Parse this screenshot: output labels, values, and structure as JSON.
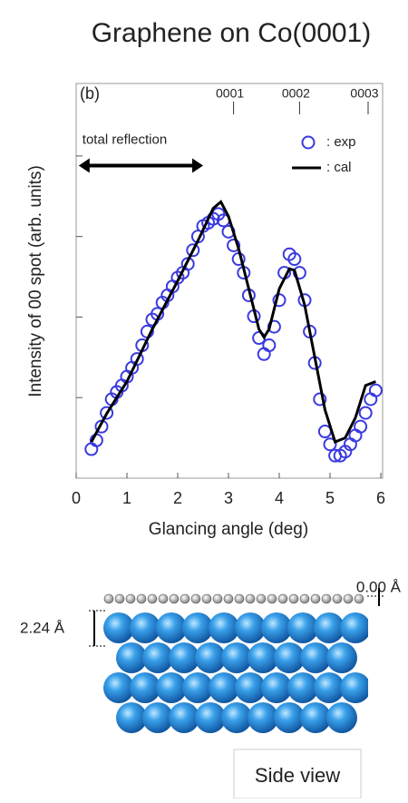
{
  "chart_data": {
    "type": "line",
    "title": "Graphene on Co(0001)",
    "panel_label": "(b)",
    "xlabel": "Glancing angle (deg)",
    "ylabel": "Intensity of 00 spot (arb. units)",
    "xlim": [
      0,
      6
    ],
    "xticks": [
      0,
      1,
      2,
      3,
      4,
      5,
      6
    ],
    "ylim": [
      0,
      4.9
    ],
    "yticks": [
      1,
      2,
      3,
      4
    ],
    "top_ticks": [
      {
        "value": 3.1,
        "label": "0001"
      },
      {
        "value": 4.4,
        "label": "0002"
      },
      {
        "value": 5.75,
        "label": "0003"
      }
    ],
    "annotation": {
      "text": "total reflection",
      "x": [
        0.05,
        2.5
      ],
      "y": 3.88
    },
    "legend": "upper right",
    "series": [
      {
        "name": ": exp",
        "color": "#3a3ae0",
        "style": "markers",
        "x": [
          0.3,
          0.4,
          0.5,
          0.6,
          0.7,
          0.8,
          0.9,
          1.0,
          1.1,
          1.2,
          1.3,
          1.4,
          1.5,
          1.6,
          1.7,
          1.8,
          1.9,
          2.0,
          2.1,
          2.2,
          2.3,
          2.4,
          2.5,
          2.6,
          2.7,
          2.8,
          2.9,
          3.0,
          3.1,
          3.2,
          3.3,
          3.4,
          3.5,
          3.6,
          3.7,
          3.8,
          3.9,
          4.0,
          4.1,
          4.2,
          4.3,
          4.4,
          4.5,
          4.6,
          4.7,
          4.8,
          4.9,
          5.0,
          5.1,
          5.2,
          5.3,
          5.4,
          5.5,
          5.6,
          5.7,
          5.8,
          5.9
        ],
        "values": [
          0.36,
          0.47,
          0.64,
          0.81,
          0.98,
          1.07,
          1.15,
          1.26,
          1.37,
          1.48,
          1.65,
          1.82,
          1.97,
          2.04,
          2.18,
          2.27,
          2.38,
          2.49,
          2.55,
          2.66,
          2.83,
          3.0,
          3.13,
          3.17,
          3.22,
          3.28,
          3.2,
          3.06,
          2.89,
          2.72,
          2.55,
          2.27,
          2.01,
          1.74,
          1.54,
          1.65,
          1.88,
          2.21,
          2.55,
          2.78,
          2.72,
          2.55,
          2.21,
          1.82,
          1.43,
          0.98,
          0.58,
          0.42,
          0.28,
          0.28,
          0.33,
          0.42,
          0.53,
          0.64,
          0.81,
          0.98,
          1.09
        ]
      },
      {
        "name": ": cal",
        "color": "#000000",
        "style": "line",
        "x": [
          0.3,
          0.6,
          1.0,
          1.5,
          2.0,
          2.4,
          2.7,
          2.85,
          3.0,
          3.2,
          3.4,
          3.6,
          3.7,
          3.8,
          4.0,
          4.2,
          4.3,
          4.5,
          4.7,
          4.9,
          5.1,
          5.3,
          5.5,
          5.7,
          5.9
        ],
        "values": [
          0.45,
          0.8,
          1.2,
          1.85,
          2.45,
          2.95,
          3.35,
          3.43,
          3.25,
          2.85,
          2.35,
          1.85,
          1.75,
          1.85,
          2.35,
          2.6,
          2.58,
          2.15,
          1.5,
          0.85,
          0.45,
          0.5,
          0.75,
          1.15,
          1.2
        ]
      }
    ]
  },
  "diagram": {
    "top_offset": "0.00 Å",
    "layer_spacing": "2.24 Å",
    "caption": "Side view"
  }
}
